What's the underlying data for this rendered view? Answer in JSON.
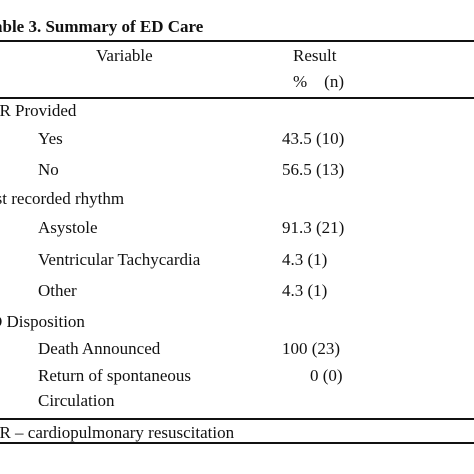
{
  "caption": "able 3.  Summary of ED Care",
  "header": {
    "variable": "Variable",
    "result": "Result",
    "unit": "%    (n)"
  },
  "rows": [
    {
      "type": "section",
      "label": "PR Provided",
      "value": ""
    },
    {
      "type": "item",
      "label": "Yes",
      "value": "43.5 (10)"
    },
    {
      "type": "item",
      "label": "No",
      "value": "56.5 (13)"
    },
    {
      "type": "section",
      "label": "rst recorded rhythm",
      "value": ""
    },
    {
      "type": "item",
      "label": "Asystole",
      "value": "91.3 (21)"
    },
    {
      "type": "item",
      "label": "Ventricular Tachycardia",
      "value": "4.3 (1)"
    },
    {
      "type": "item",
      "label": "Other",
      "value": "4.3 (1)"
    },
    {
      "type": "section",
      "label": "D Disposition",
      "value": ""
    },
    {
      "type": "item",
      "label": "Death Announced",
      "value": "100 (23)"
    },
    {
      "type": "item",
      "label": "Return of spontaneous",
      "value": "0 (0)"
    },
    {
      "type": "item",
      "label": "Circulation",
      "value": ""
    }
  ],
  "footnote": "PR – cardiopulmonary resuscitation"
}
